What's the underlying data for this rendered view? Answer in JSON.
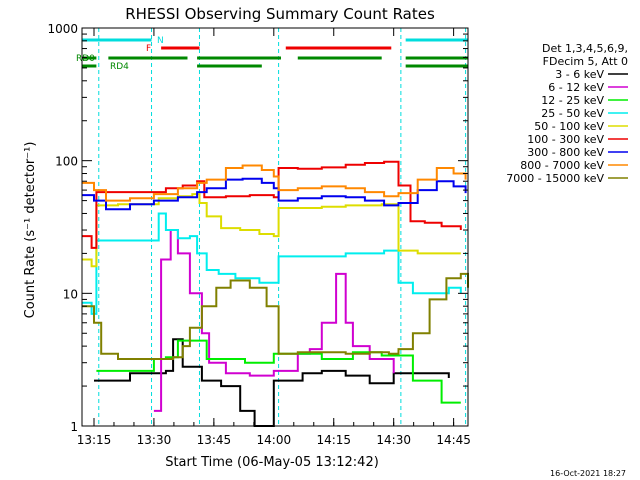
{
  "chart_data": {
    "type": "line",
    "title": "RHESSI Observing Summary Count Rates",
    "xlabel": "Start Time (06-May-05 13:12:42)",
    "ylabel": "Count Rate (s⁻¹ detector⁻¹)",
    "xscale": "time (minutes)",
    "xlim": [
      13.2,
      14.81
    ],
    "yscale": "log",
    "ylim": [
      1,
      1000
    ],
    "x_ticks": [
      {
        "h": 13.25,
        "label": "13:15"
      },
      {
        "h": 13.5,
        "label": "13:30"
      },
      {
        "h": 13.75,
        "label": "13:45"
      },
      {
        "h": 14.0,
        "label": "14:00"
      },
      {
        "h": 14.25,
        "label": "14:15"
      },
      {
        "h": 14.5,
        "label": "14:30"
      },
      {
        "h": 14.75,
        "label": "14:45"
      }
    ],
    "y_ticks": [
      {
        "v": 1,
        "label": "1"
      },
      {
        "v": 10,
        "label": "10"
      },
      {
        "v": 100,
        "label": "100"
      },
      {
        "v": 1000,
        "label": "1000"
      }
    ],
    "legend_position": "right",
    "legend_header": [
      "Det 1,3,4,5,6,9,",
      "FDecim 5, Att 0"
    ],
    "series": [
      {
        "name": "3 - 6 keV",
        "color": "#000000",
        "points": [
          [
            13.25,
            2.2
          ],
          [
            13.4,
            2.5
          ],
          [
            13.5,
            2.5
          ],
          [
            13.55,
            2.6
          ],
          [
            13.58,
            4.5
          ],
          [
            13.62,
            2.8
          ],
          [
            13.7,
            2.2
          ],
          [
            13.78,
            2.0
          ],
          [
            13.86,
            1.3
          ],
          [
            13.92,
            1.0
          ],
          [
            14.0,
            2.2
          ],
          [
            14.12,
            2.5
          ],
          [
            14.2,
            2.6
          ],
          [
            14.3,
            2.4
          ],
          [
            14.4,
            2.1
          ],
          [
            14.5,
            2.5
          ],
          [
            14.6,
            2.5
          ],
          [
            14.73,
            2.3
          ]
        ]
      },
      {
        "name": "6 - 12 keV",
        "color": "#d000d0",
        "points": [
          [
            13.5,
            1.3
          ],
          [
            13.53,
            18
          ],
          [
            13.57,
            30
          ],
          [
            13.6,
            20
          ],
          [
            13.65,
            10
          ],
          [
            13.7,
            5
          ],
          [
            13.73,
            3
          ],
          [
            13.8,
            2.5
          ],
          [
            13.9,
            2.4
          ],
          [
            14.0,
            2.6
          ],
          [
            14.1,
            3.5
          ],
          [
            14.15,
            3.8
          ],
          [
            14.2,
            6
          ],
          [
            14.26,
            14
          ],
          [
            14.3,
            6
          ],
          [
            14.33,
            4
          ],
          [
            14.4,
            3.2
          ],
          [
            14.5,
            2.5
          ]
        ]
      },
      {
        "name": "12 - 25 keV",
        "color": "#00ee00",
        "points": [
          [
            13.26,
            2.6
          ],
          [
            13.5,
            3.2
          ],
          [
            13.55,
            3.3
          ],
          [
            13.6,
            4.4
          ],
          [
            13.72,
            3.2
          ],
          [
            13.88,
            3.0
          ],
          [
            14.0,
            3.5
          ],
          [
            14.2,
            3.2
          ],
          [
            14.33,
            3.6
          ],
          [
            14.45,
            3.4
          ],
          [
            14.58,
            2.2
          ],
          [
            14.7,
            1.5
          ],
          [
            14.78,
            1.5
          ]
        ]
      },
      {
        "name": "25 - 50 keV",
        "color": "#00eeee",
        "points": [
          [
            13.2,
            8.5
          ],
          [
            13.24,
            7
          ],
          [
            13.26,
            25
          ],
          [
            13.35,
            25
          ],
          [
            13.48,
            25
          ],
          [
            13.52,
            40
          ],
          [
            13.55,
            30
          ],
          [
            13.6,
            26
          ],
          [
            13.65,
            27
          ],
          [
            13.68,
            20
          ],
          [
            13.72,
            15
          ],
          [
            13.77,
            14
          ],
          [
            13.84,
            13
          ],
          [
            13.94,
            12
          ],
          [
            14.02,
            19
          ],
          [
            14.1,
            19
          ],
          [
            14.2,
            19
          ],
          [
            14.3,
            20
          ],
          [
            14.38,
            20
          ],
          [
            14.46,
            21
          ],
          [
            14.52,
            12
          ],
          [
            14.58,
            10
          ],
          [
            14.66,
            10
          ],
          [
            14.73,
            11
          ],
          [
            14.78,
            10
          ]
        ]
      },
      {
        "name": "50 - 100 keV",
        "color": "#dddd00",
        "points": [
          [
            13.2,
            18
          ],
          [
            13.24,
            16
          ],
          [
            13.26,
            46
          ],
          [
            13.35,
            47
          ],
          [
            13.48,
            47
          ],
          [
            13.52,
            52
          ],
          [
            13.6,
            54
          ],
          [
            13.66,
            56
          ],
          [
            13.69,
            48
          ],
          [
            13.72,
            38
          ],
          [
            13.78,
            31
          ],
          [
            13.86,
            30
          ],
          [
            13.94,
            28
          ],
          [
            14.0,
            27
          ],
          [
            14.02,
            44
          ],
          [
            14.1,
            44
          ],
          [
            14.2,
            45
          ],
          [
            14.3,
            46
          ],
          [
            14.38,
            46
          ],
          [
            14.45,
            47
          ],
          [
            14.52,
            21
          ],
          [
            14.6,
            20
          ],
          [
            14.7,
            20
          ],
          [
            14.78,
            20
          ]
        ]
      },
      {
        "name": "100 - 300 keV",
        "color": "#ee0000",
        "points": [
          [
            13.2,
            27
          ],
          [
            13.24,
            22
          ],
          [
            13.26,
            58
          ],
          [
            13.35,
            58
          ],
          [
            13.48,
            58
          ],
          [
            13.55,
            62
          ],
          [
            13.62,
            65
          ],
          [
            13.68,
            70
          ],
          [
            13.71,
            53
          ],
          [
            13.8,
            54
          ],
          [
            13.9,
            55
          ],
          [
            14.0,
            53
          ],
          [
            14.02,
            88
          ],
          [
            14.1,
            87
          ],
          [
            14.2,
            89
          ],
          [
            14.3,
            93
          ],
          [
            14.38,
            96
          ],
          [
            14.46,
            98
          ],
          [
            14.52,
            65
          ],
          [
            14.57,
            35
          ],
          [
            14.63,
            34
          ],
          [
            14.7,
            32
          ],
          [
            14.78,
            30
          ]
        ]
      },
      {
        "name": "300 - 800 keV",
        "color": "#0000ee",
        "points": [
          [
            13.2,
            55
          ],
          [
            13.25,
            50
          ],
          [
            13.3,
            43
          ],
          [
            13.4,
            47
          ],
          [
            13.5,
            50
          ],
          [
            13.6,
            53
          ],
          [
            13.68,
            58
          ],
          [
            13.72,
            62
          ],
          [
            13.8,
            72
          ],
          [
            13.87,
            73
          ],
          [
            13.95,
            68
          ],
          [
            14.0,
            62
          ],
          [
            14.02,
            50
          ],
          [
            14.1,
            52
          ],
          [
            14.2,
            54
          ],
          [
            14.3,
            53
          ],
          [
            14.38,
            50
          ],
          [
            14.46,
            46
          ],
          [
            14.52,
            48
          ],
          [
            14.6,
            60
          ],
          [
            14.68,
            70
          ],
          [
            14.75,
            64
          ],
          [
            14.8,
            57
          ]
        ]
      },
      {
        "name": "800 - 7000 keV",
        "color": "#ff8800",
        "points": [
          [
            13.2,
            68
          ],
          [
            13.25,
            60
          ],
          [
            13.3,
            50
          ],
          [
            13.4,
            52
          ],
          [
            13.5,
            56
          ],
          [
            13.6,
            62
          ],
          [
            13.68,
            68
          ],
          [
            13.72,
            72
          ],
          [
            13.8,
            88
          ],
          [
            13.87,
            92
          ],
          [
            13.95,
            85
          ],
          [
            14.0,
            76
          ],
          [
            14.02,
            60
          ],
          [
            14.1,
            62
          ],
          [
            14.2,
            64
          ],
          [
            14.3,
            62
          ],
          [
            14.38,
            58
          ],
          [
            14.46,
            54
          ],
          [
            14.52,
            57
          ],
          [
            14.6,
            72
          ],
          [
            14.68,
            88
          ],
          [
            14.75,
            80
          ],
          [
            14.8,
            72
          ]
        ]
      },
      {
        "name": "7000 - 15000 keV",
        "color": "#808000",
        "points": [
          [
            13.2,
            8
          ],
          [
            13.25,
            6
          ],
          [
            13.28,
            3.5
          ],
          [
            13.35,
            3.2
          ],
          [
            13.45,
            3.2
          ],
          [
            13.52,
            3.2
          ],
          [
            13.58,
            3.3
          ],
          [
            13.62,
            4
          ],
          [
            13.65,
            5.5
          ],
          [
            13.7,
            8
          ],
          [
            13.76,
            11
          ],
          [
            13.82,
            12.5
          ],
          [
            13.9,
            11
          ],
          [
            13.97,
            8
          ],
          [
            14.02,
            3.5
          ],
          [
            14.1,
            3.6
          ],
          [
            14.2,
            3.6
          ],
          [
            14.3,
            3.5
          ],
          [
            14.4,
            3.6
          ],
          [
            14.48,
            3.5
          ],
          [
            14.52,
            3.8
          ],
          [
            14.58,
            5
          ],
          [
            14.65,
            9
          ],
          [
            14.72,
            13
          ],
          [
            14.78,
            14
          ],
          [
            14.81,
            11
          ]
        ]
      }
    ],
    "flags": [
      {
        "label": "N",
        "color": "#00dddd",
        "segments": [
          [
            13.2,
            13.49
          ],
          [
            14.55,
            14.81
          ]
        ]
      },
      {
        "label": "F",
        "color": "#ee0000",
        "segments": [
          [
            13.53,
            13.69
          ],
          [
            14.05,
            14.49
          ]
        ]
      },
      {
        "label": "RD0",
        "color": "#008800",
        "segments": [
          [
            13.2,
            13.26
          ],
          [
            13.31,
            13.64
          ],
          [
            13.68,
            14.03
          ],
          [
            14.1,
            14.45
          ],
          [
            14.55,
            14.81
          ]
        ]
      },
      {
        "label": "RD4",
        "color": "#008800",
        "segments": []
      }
    ],
    "vlines": [
      13.2,
      13.27,
      13.49,
      13.69,
      14.02,
      14.53,
      14.8
    ],
    "timestamp": "16-Oct-2021 18:27"
  }
}
